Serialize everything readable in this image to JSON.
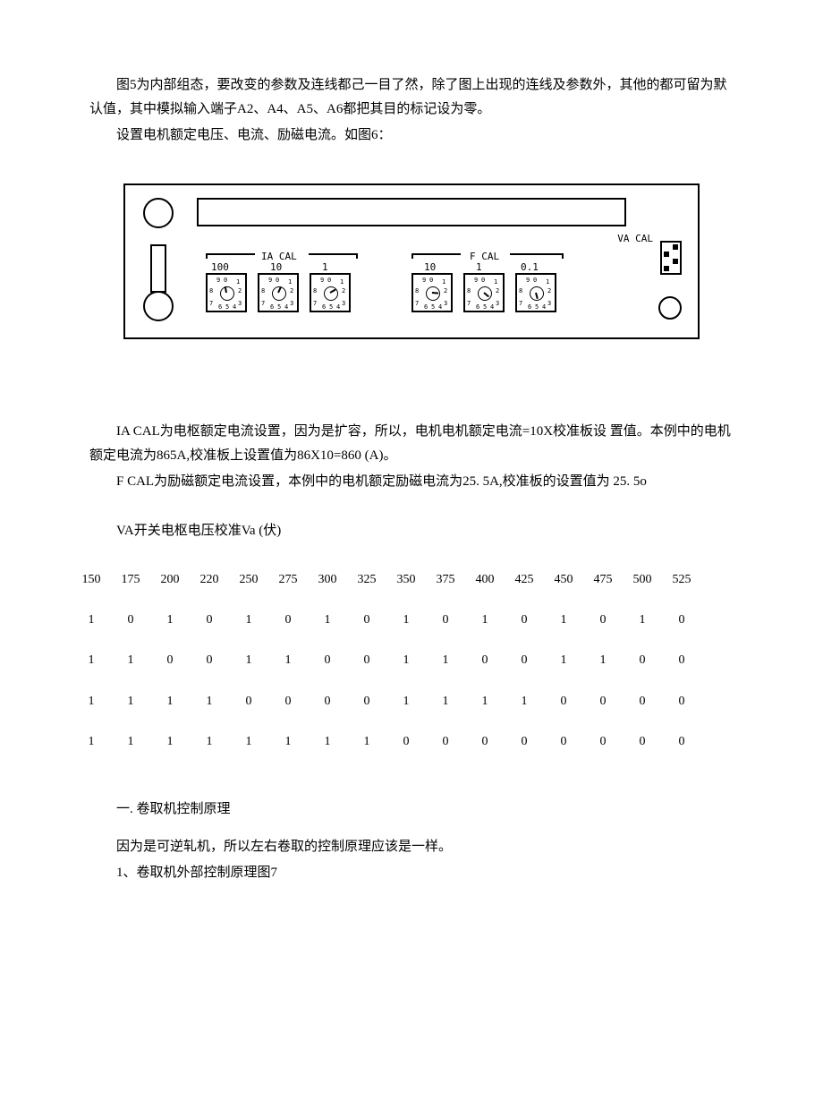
{
  "intro": {
    "p1": "图5为内部组态，要改变的参数及连线都己一目了然，除了图上出现的连线及参数外，其他的都可留为默认值，其中模拟输入端子A2、A4、A5、A6都把其目的标记设为零。",
    "p2": "设置电机额定电压、电流、励磁电流。如图6："
  },
  "panel": {
    "va_cal": "VA CAL",
    "ia_cal": "IA CAL",
    "f_cal": "F CAL",
    "dial_labels": [
      "100",
      "10",
      "1",
      "10",
      "1",
      "0.1"
    ],
    "dial_numbers": [
      "9",
      "0",
      "1",
      "8",
      "2",
      "7",
      "3",
      "6",
      "5",
      "4"
    ]
  },
  "mid": {
    "p1": "IA CAL为电枢额定电流设置，因为是扩容，所以，电机电机额定电流=10X校准板设 置值。本例中的电机额定电流为865A,校准板上设置值为86X10=860 (A)。",
    "p2": "F CAL为励磁额定电流设置，本例中的电机额定励磁电流为25. 5A,校准板的设置值为 25. 5o",
    "p3": "VA开关电枢电压校准Va (伏)"
  },
  "table": {
    "header": [
      "150",
      "175",
      "200",
      "220",
      "250",
      "275",
      "300",
      "325",
      "350",
      "375",
      "400",
      "425",
      "450",
      "475",
      "500",
      "525"
    ],
    "rows": [
      [
        "1",
        "0",
        "1",
        "0",
        "1",
        "0",
        "1",
        "0",
        "1",
        "0",
        "1",
        "0",
        "1",
        "0",
        "1",
        "0"
      ],
      [
        "1",
        "1",
        "0",
        "0",
        "1",
        "1",
        "0",
        "0",
        "1",
        "1",
        "0",
        "0",
        "1",
        "1",
        "0",
        "0"
      ],
      [
        "1",
        "1",
        "1",
        "1",
        "0",
        "0",
        "0",
        "0",
        "1",
        "1",
        "1",
        "1",
        "0",
        "0",
        "0",
        "0"
      ],
      [
        "1",
        "1",
        "1",
        "1",
        "1",
        "1",
        "1",
        "1",
        "0",
        "0",
        "0",
        "0",
        "0",
        "0",
        "0",
        "0"
      ]
    ]
  },
  "footer": {
    "h": "一. 卷取机控制原理",
    "p1": "因为是可逆轧机，所以左右卷取的控制原理应该是一样。",
    "p2": "1、卷取机外部控制原理图7"
  }
}
